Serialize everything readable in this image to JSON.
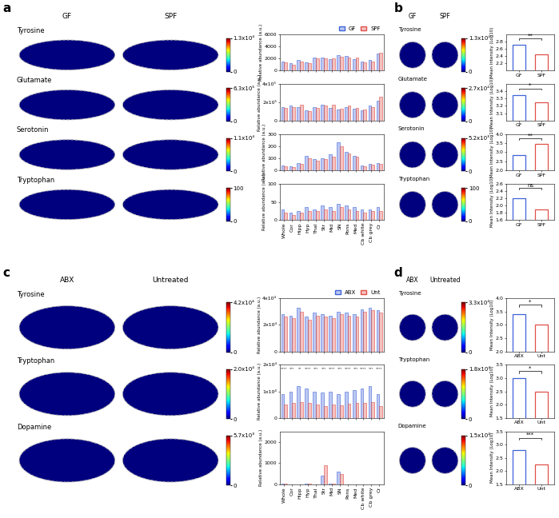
{
  "chart_data": [
    {
      "type": "panel",
      "panel": "a",
      "conditions": [
        "GF",
        "SPF"
      ],
      "groups": [
        {
          "name": "GF",
          "color": "#3f63d9"
        },
        {
          "name": "SPF",
          "color": "#e0504a"
        }
      ],
      "regions": [
        "Whole",
        "Cor",
        "Hipp",
        "Hyp",
        "Thal",
        "Str",
        "Mid",
        "SN",
        "Pons",
        "Med",
        "Cb white",
        "Cb grey",
        "Cr"
      ],
      "maps": [
        {
          "title": "Tyrosine",
          "clim": [
            0,
            13000
          ],
          "cticks": [
            0,
            {
              "value": 13000,
              "label": "1.3x10⁴"
            }
          ]
        },
        {
          "title": "Glutamate",
          "clim": [
            0,
            630000
          ],
          "cticks": [
            0,
            {
              "value": 630000,
              "label": "6.3x10⁵"
            }
          ]
        },
        {
          "title": "Serotonin",
          "clim": [
            0,
            11000
          ],
          "cticks": [
            0,
            {
              "value": 11000,
              "label": "1.1x10⁴"
            }
          ]
        },
        {
          "title": "Tryptophan",
          "clim": [
            0,
            100
          ],
          "cticks": [
            0,
            100
          ]
        }
      ],
      "charts": [
        {
          "type": "bar",
          "ylabel": "Relative abundance (a.u.)",
          "ylim": [
            0,
            6000
          ],
          "yticks": [
            0,
            2000,
            4000,
            6000
          ],
          "series": [
            {
              "values": [
                1500,
                1200,
                1800,
                1300,
                2100,
                2200,
                1900,
                2600,
                2400,
                1900,
                1500,
                1700,
                2800
              ]
            },
            {
              "values": [
                1300,
                1000,
                1500,
                1200,
                2000,
                2000,
                2000,
                2300,
                2200,
                2100,
                1300,
                1500,
                2900
              ]
            }
          ]
        },
        {
          "type": "bar",
          "ylabel": "Relative abundance (a.u.)",
          "ylim": [
            0,
            400000
          ],
          "yticks": [
            0,
            {
              "value": 200000,
              "label": "2x10⁵"
            },
            {
              "value": 400000,
              "label": "4x10⁵"
            }
          ],
          "series": [
            {
              "values": [
                150000,
                160000,
                150000,
                110000,
                150000,
                170000,
                140000,
                120000,
                150000,
                130000,
                110000,
                160000,
                220000
              ]
            },
            {
              "values": [
                140000,
                150000,
                170000,
                100000,
                140000,
                160000,
                170000,
                130000,
                160000,
                140000,
                120000,
                150000,
                260000
              ]
            }
          ]
        },
        {
          "type": "bar",
          "ylabel": "Relative abundance (a.u.)",
          "ylim": [
            0,
            300
          ],
          "yticks": [
            0,
            100,
            200,
            300
          ],
          "series": [
            {
              "values": [
                40,
                30,
                60,
                120,
                90,
                100,
                130,
                230,
                150,
                120,
                40,
                50,
                60
              ]
            },
            {
              "values": [
                30,
                25,
                50,
                100,
                80,
                90,
                110,
                200,
                140,
                110,
                35,
                45,
                55
              ]
            }
          ]
        },
        {
          "type": "bar",
          "ylabel": "Relative abundance (a.u.)",
          "ylim": [
            0,
            100
          ],
          "yticks": [
            0,
            50,
            100
          ],
          "series": [
            {
              "values": [
                30,
                20,
                25,
                35,
                30,
                40,
                35,
                45,
                40,
                35,
                30,
                30,
                35
              ]
            },
            {
              "values": [
                20,
                15,
                20,
                25,
                25,
                30,
                25,
                35,
                30,
                25,
                20,
                25,
                25
              ]
            }
          ]
        }
      ]
    },
    {
      "type": "panel",
      "panel": "b",
      "conditions": [
        "GF",
        "SPF"
      ],
      "groups": [
        {
          "name": "GF",
          "color": "#3f63d9"
        },
        {
          "name": "SPF",
          "color": "#e0504a"
        }
      ],
      "maps": [
        {
          "title": "Tyrosine",
          "clim": [
            0,
            13000
          ],
          "cticks": [
            0,
            {
              "value": 13000,
              "label": "1.3x10⁴"
            }
          ]
        },
        {
          "title": "Glutamate",
          "clim": [
            0,
            27000
          ],
          "cticks": [
            0,
            {
              "value": 27000,
              "label": "2.7x10⁴"
            }
          ]
        },
        {
          "title": "Serotonin",
          "clim": [
            0,
            5200
          ],
          "cticks": [
            0,
            {
              "value": 5200,
              "label": "5.2x10³"
            }
          ]
        },
        {
          "title": "Tryptophan",
          "clim": [
            0,
            100
          ],
          "cticks": [
            0,
            100
          ]
        }
      ],
      "charts": [
        {
          "type": "bar",
          "ylabel": "Mean Intensity (Log10)",
          "ylim": [
            2.0,
            3.0
          ],
          "yticks": [
            2.2,
            2.4,
            2.6,
            2.8
          ],
          "values": [
            2.72,
            2.45
          ],
          "annotation": "**"
        },
        {
          "type": "bar",
          "ylabel": "Mean Intensity (Log10)",
          "ylim": [
            3.0,
            3.5
          ],
          "yticks": [
            3.1,
            3.2,
            3.3,
            3.4
          ],
          "values": [
            3.35,
            3.25
          ],
          "annotation": "*"
        },
        {
          "type": "bar",
          "ylabel": "Mean Intensity (Log10)",
          "ylim": [
            2.0,
            4.0
          ],
          "yticks": [
            2.0,
            2.5,
            3.0,
            3.5,
            4.0
          ],
          "values": [
            2.85,
            3.45
          ],
          "annotation": "**"
        },
        {
          "type": "bar",
          "ylabel": "Mean Intensity (Log10)",
          "ylim": [
            1.6,
            2.6
          ],
          "yticks": [
            1.6,
            1.8,
            2.0,
            2.2,
            2.4,
            2.6
          ],
          "values": [
            2.2,
            1.9
          ],
          "annotation": "ns"
        }
      ]
    },
    {
      "type": "panel",
      "panel": "c",
      "conditions": [
        "ABX",
        "Untreated"
      ],
      "groups": [
        {
          "name": "ABX",
          "color": "#3f63d9"
        },
        {
          "name": "Unt",
          "color": "#e0504a"
        }
      ],
      "regions": [
        "Whole",
        "Cor",
        "Hipp",
        "Hyp",
        "Thal",
        "Str",
        "Mid",
        "SN",
        "Pons",
        "Med",
        "Cb white",
        "Cb grey",
        "Cr"
      ],
      "maps": [
        {
          "title": "Tyrosine",
          "clim": [
            0,
            42000
          ],
          "cticks": [
            0,
            {
              "value": 42000,
              "label": "4.2x10⁴"
            }
          ]
        },
        {
          "title": "Tryptophan",
          "clim": [
            0,
            20000
          ],
          "cticks": [
            0,
            {
              "value": 20000,
              "label": "2.0x10⁴"
            }
          ]
        },
        {
          "title": "Dopamine",
          "clim": [
            0,
            5700
          ],
          "cticks": [
            0,
            {
              "value": 5700,
              "label": "5.7x10³"
            }
          ]
        }
      ],
      "charts": [
        {
          "type": "bar",
          "ylabel": "Relative abundance (a.u.)",
          "ylim": [
            0,
            40000
          ],
          "yticks": [
            0,
            {
              "value": 20000,
              "label": "2x10⁴"
            },
            {
              "value": 40000,
              "label": "4x10⁴"
            }
          ],
          "series": [
            {
              "values": [
                28000,
                27000,
                33000,
                26000,
                29000,
                28000,
                27000,
                30000,
                29000,
                28000,
                32000,
                33000,
                31000
              ]
            },
            {
              "values": [
                26000,
                25000,
                30000,
                24000,
                27000,
                26000,
                25000,
                28000,
                27000,
                26000,
                30000,
                31000,
                29000
              ]
            }
          ]
        },
        {
          "type": "bar",
          "ylabel": "Relative abundance (a.u.)",
          "ylim": [
            0,
            20000
          ],
          "yticks": [
            0,
            {
              "value": 10000,
              "label": "1x10⁴"
            },
            {
              "value": 20000,
              "label": "2x10⁴"
            }
          ],
          "series": [
            {
              "values": [
                9000,
                10000,
                12000,
                11000,
                10000,
                9500,
                10000,
                9000,
                10000,
                10500,
                11000,
                12000,
                9000
              ]
            },
            {
              "values": [
                5000,
                5500,
                6000,
                5500,
                5000,
                4500,
                5000,
                4800,
                5200,
                5500,
                5500,
                6000,
                4500
              ]
            }
          ],
          "annotations": [
            "****",
            "***",
            "**",
            "****",
            "***",
            "***",
            "****",
            "***",
            "****",
            "***",
            "****",
            "***",
            "****"
          ]
        },
        {
          "type": "bar",
          "ylabel": "Relative abundance (a.u.)",
          "ylim": [
            0,
            2500
          ],
          "yticks": [
            0,
            1000,
            2000
          ],
          "series": [
            {
              "values": [
                20,
                10,
                10,
                20,
                10,
                400,
                30,
                600,
                10,
                10,
                10,
                10,
                10
              ]
            },
            {
              "values": [
                15,
                10,
                10,
                15,
                10,
                900,
                20,
                500,
                10,
                10,
                10,
                10,
                10
              ]
            }
          ]
        }
      ]
    },
    {
      "type": "panel",
      "panel": "d",
      "conditions": [
        "ABX",
        "Untreated"
      ],
      "groups": [
        {
          "name": "ABX",
          "color": "#3f63d9"
        },
        {
          "name": "Unt",
          "color": "#e0504a"
        }
      ],
      "maps": [
        {
          "title": "Tyrosine",
          "clim": [
            0,
            33000
          ],
          "cticks": [
            0,
            {
              "value": 33000,
              "label": "3.3x10⁴"
            }
          ]
        },
        {
          "title": "Tryptophan",
          "clim": [
            0,
            18000
          ],
          "cticks": [
            0,
            {
              "value": 18000,
              "label": "1.8x10⁴"
            }
          ]
        },
        {
          "title": "Dopamine",
          "clim": [
            0,
            15000
          ],
          "cticks": [
            0,
            {
              "value": 15000,
              "label": "1.5x10⁴"
            }
          ]
        }
      ],
      "charts": [
        {
          "type": "bar",
          "ylabel": "Mean Intensity (Log10)",
          "ylim": [
            2.0,
            4.0
          ],
          "yticks": [
            2.0,
            2.5,
            3.0,
            3.5,
            4.0
          ],
          "values": [
            3.4,
            3.0
          ],
          "annotation": "*"
        },
        {
          "type": "bar",
          "ylabel": "Mean Intensity (Log10)",
          "ylim": [
            1.5,
            3.5
          ],
          "yticks": [
            1.5,
            2.0,
            2.5,
            3.0,
            3.5
          ],
          "values": [
            3.0,
            2.5
          ],
          "annotation": "*"
        },
        {
          "type": "bar",
          "ylabel": "Mean Intensity (Log10)",
          "ylim": [
            1.5,
            3.5
          ],
          "yticks": [
            1.5,
            2.0,
            2.5,
            3.0,
            3.5
          ],
          "values": [
            2.8,
            2.25
          ],
          "annotation": "***"
        }
      ]
    }
  ]
}
